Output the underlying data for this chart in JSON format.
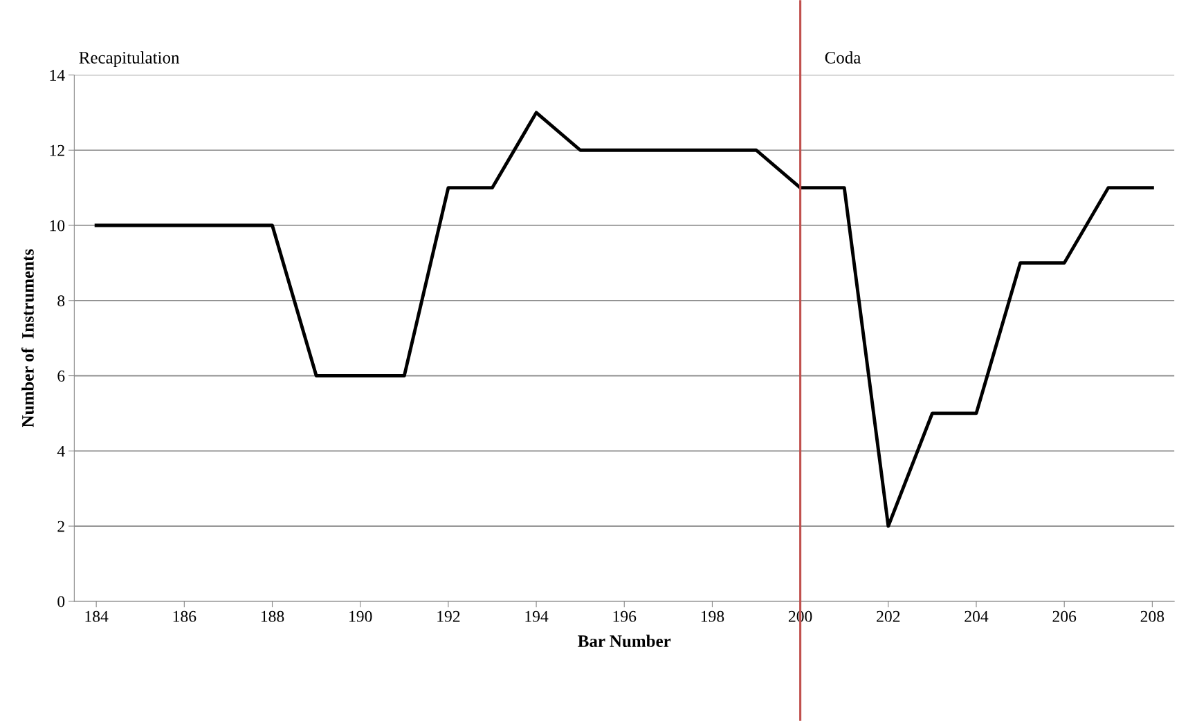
{
  "chart_data": {
    "type": "line",
    "xlabel": "Bar Number",
    "ylabel": "Number of  Instruments",
    "x": [
      184,
      185,
      186,
      187,
      188,
      189,
      190,
      191,
      192,
      193,
      194,
      195,
      196,
      197,
      198,
      199,
      200,
      201,
      202,
      203,
      204,
      205,
      206,
      207,
      208
    ],
    "series": [
      {
        "color": "#000000",
        "values": [
          10,
          10,
          10,
          10,
          10,
          6,
          6,
          6,
          11,
          11,
          13,
          12,
          12,
          12,
          12,
          12,
          11,
          11,
          2,
          5,
          5,
          9,
          9,
          11,
          11
        ]
      }
    ],
    "xlim": [
      183.5,
      208.5
    ],
    "xticks": [
      184,
      186,
      188,
      190,
      192,
      194,
      196,
      198,
      200,
      202,
      204,
      206,
      208
    ],
    "ylim": [
      0,
      14
    ],
    "yticks": [
      0,
      2,
      4,
      6,
      8,
      10,
      12,
      14
    ],
    "grid": "y",
    "legend": false,
    "marker": "none",
    "line_style": "solid",
    "ref_lines": [
      {
        "axis": "x",
        "value": 200,
        "label": null,
        "color": "#c0504d"
      }
    ],
    "annotations": [
      "Recapitulation",
      "Coda"
    ]
  }
}
